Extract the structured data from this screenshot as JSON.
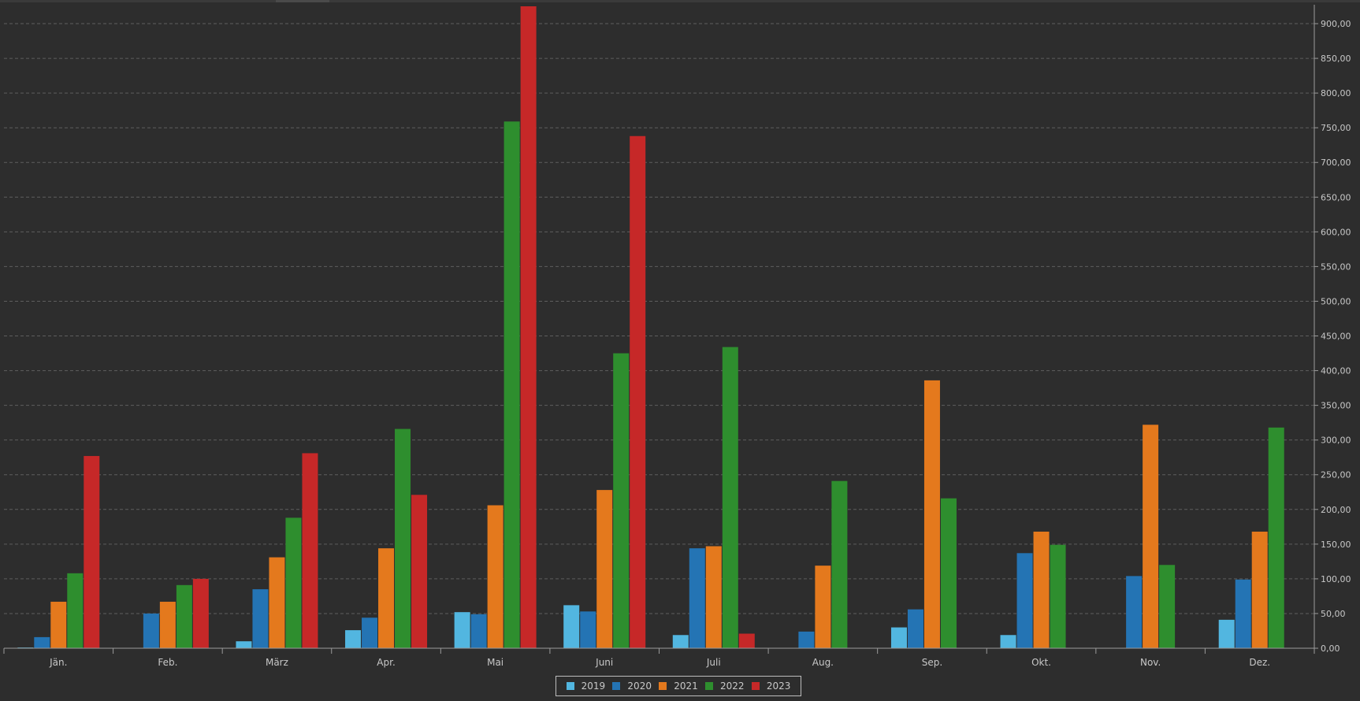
{
  "chart_data": {
    "type": "bar",
    "categories": [
      "Jän.",
      "Feb.",
      "März",
      "Apr.",
      "Mai",
      "Juni",
      "Juli",
      "Aug.",
      "Sep.",
      "Okt.",
      "Nov.",
      "Dez."
    ],
    "series": [
      {
        "name": "2019",
        "color": "#52b6e0",
        "values": [
          1,
          0,
          10,
          26,
          52,
          62,
          19,
          0,
          30,
          19,
          0,
          41
        ]
      },
      {
        "name": "2020",
        "color": "#2474b4",
        "values": [
          16,
          50,
          85,
          44,
          49,
          53,
          144,
          24,
          56,
          137,
          104,
          99
        ]
      },
      {
        "name": "2021",
        "color": "#e4791d",
        "values": [
          67,
          67,
          131,
          144,
          206,
          228,
          147,
          119,
          386,
          168,
          322,
          168
        ]
      },
      {
        "name": "2022",
        "color": "#2e8e2e",
        "values": [
          108,
          91,
          188,
          316,
          759,
          425,
          434,
          241,
          216,
          149,
          120,
          318
        ]
      },
      {
        "name": "2023",
        "color": "#c62828",
        "values": [
          277,
          100,
          281,
          221,
          925,
          738,
          21,
          0,
          0,
          0,
          0,
          0
        ]
      }
    ],
    "ylim": [
      0,
      925
    ],
    "yticks": [
      "0,00",
      "50,00",
      "100,00",
      "150,00",
      "200,00",
      "250,00",
      "300,00",
      "350,00",
      "400,00",
      "450,00",
      "500,00",
      "550,00",
      "600,00",
      "650,00",
      "700,00",
      "750,00",
      "800,00",
      "850,00",
      "900,00"
    ],
    "ytick_values": [
      0,
      50,
      100,
      150,
      200,
      250,
      300,
      350,
      400,
      450,
      500,
      550,
      600,
      650,
      700,
      750,
      800,
      850,
      900
    ],
    "grid": true,
    "yaxis_position": "right",
    "legend_position": "bottom-center"
  }
}
